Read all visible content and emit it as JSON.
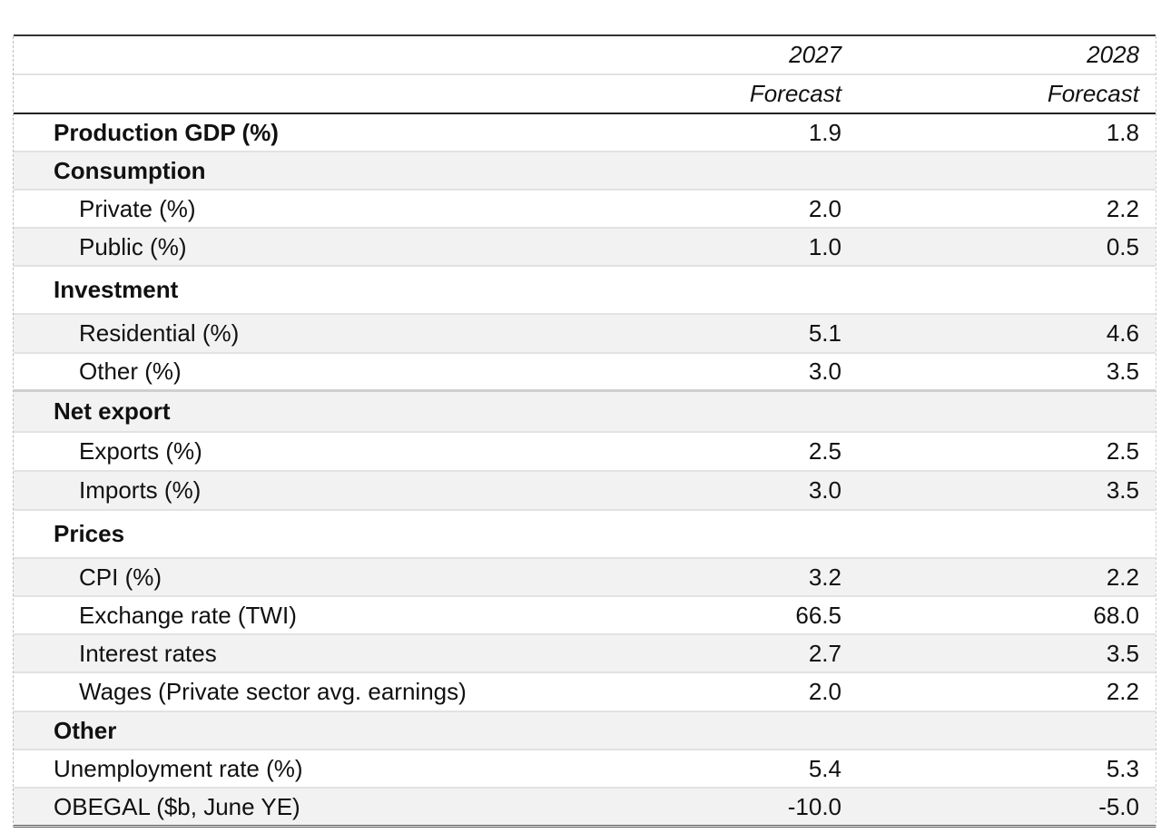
{
  "table": {
    "columns": [
      {
        "year": "2027",
        "note": "Forecast"
      },
      {
        "year": "2028",
        "note": "Forecast"
      }
    ],
    "rows": [
      {
        "label": "Production GDP (%)",
        "values": [
          "1.9",
          "1.8"
        ]
      },
      {
        "label": "Consumption"
      },
      {
        "label": "Private (%)",
        "values": [
          "2.0",
          "2.2"
        ]
      },
      {
        "label": "Public (%)",
        "values": [
          "1.0",
          "0.5"
        ]
      },
      {
        "label": "Investment"
      },
      {
        "label": "Residential (%)",
        "values": [
          "5.1",
          "4.6"
        ]
      },
      {
        "label": "Other (%)",
        "values": [
          "3.0",
          "3.5"
        ]
      },
      {
        "label": "Net export"
      },
      {
        "label": "Exports (%)",
        "values": [
          "2.5",
          "2.5"
        ]
      },
      {
        "label": "Imports (%)",
        "values": [
          "3.0",
          "3.5"
        ]
      },
      {
        "label": "Prices"
      },
      {
        "label": "CPI (%)",
        "values": [
          "3.2",
          "2.2"
        ]
      },
      {
        "label": "Exchange rate (TWI)",
        "values": [
          "66.5",
          "68.0"
        ]
      },
      {
        "label": "Interest rates",
        "values": [
          "2.7",
          "3.5"
        ]
      },
      {
        "label": "Wages (Private sector avg. earnings)",
        "values": [
          "2.0",
          "2.2"
        ]
      },
      {
        "label": "Other"
      },
      {
        "label": "Unemployment rate (%)",
        "values": [
          "5.4",
          "5.3"
        ]
      },
      {
        "label": "OBEGAL ($b, June YE)",
        "values": [
          "-10.0",
          "-5.0"
        ]
      }
    ]
  }
}
